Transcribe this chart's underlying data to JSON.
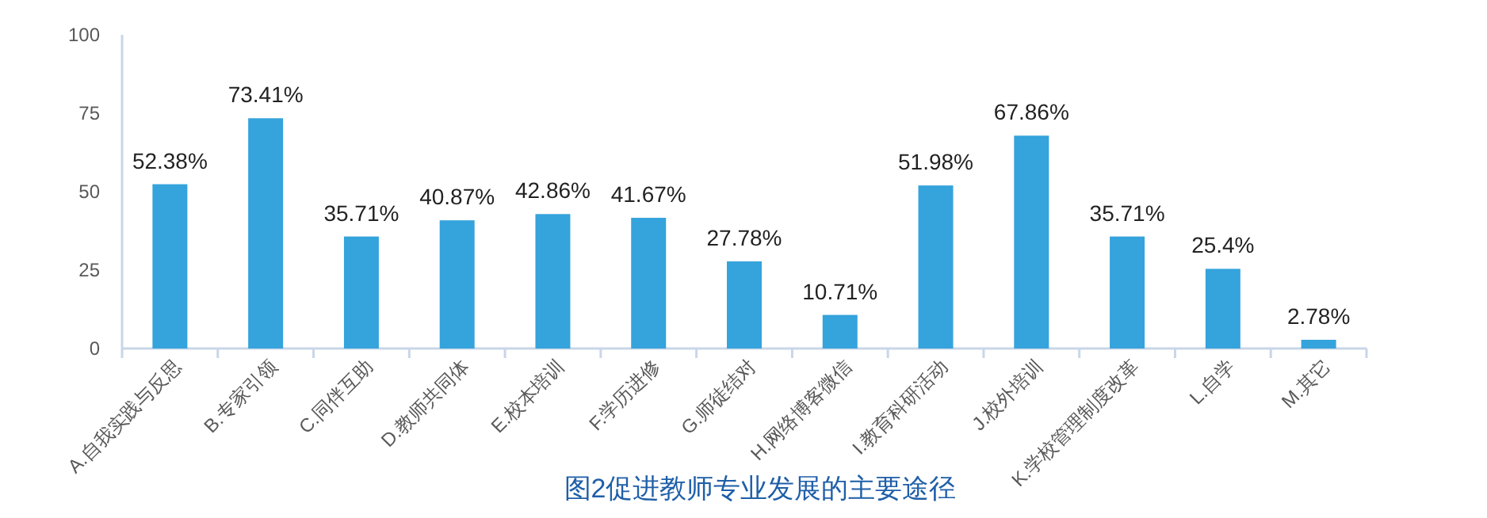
{
  "chart_data": {
    "type": "bar",
    "title": "图2促进教师专业发展的主要途径",
    "categories": [
      "A.自我实践与反思",
      "B.专家引领",
      "C.同伴互助",
      "D.教师共同体",
      "E.校本培训",
      "F.学历进修",
      "G.师徒结对",
      "H.网络博客微信",
      "I.教育科研活动",
      "J.校外培训",
      "K.学校管理制度改革",
      "L.自学",
      "M.其它"
    ],
    "values": [
      52.38,
      73.41,
      35.71,
      40.87,
      42.86,
      41.67,
      27.78,
      10.71,
      51.98,
      67.86,
      35.71,
      25.4,
      2.78
    ],
    "value_labels": [
      "52.38%",
      "73.41%",
      "35.71%",
      "40.87%",
      "42.86%",
      "41.67%",
      "27.78%",
      "10.71%",
      "51.98%",
      "67.86%",
      "35.71%",
      "25.4%",
      "2.78%"
    ],
    "color": "#35a3dc",
    "ylim": [
      0,
      100
    ],
    "yticks": [
      0,
      25,
      50,
      75,
      100
    ],
    "grid": false
  }
}
